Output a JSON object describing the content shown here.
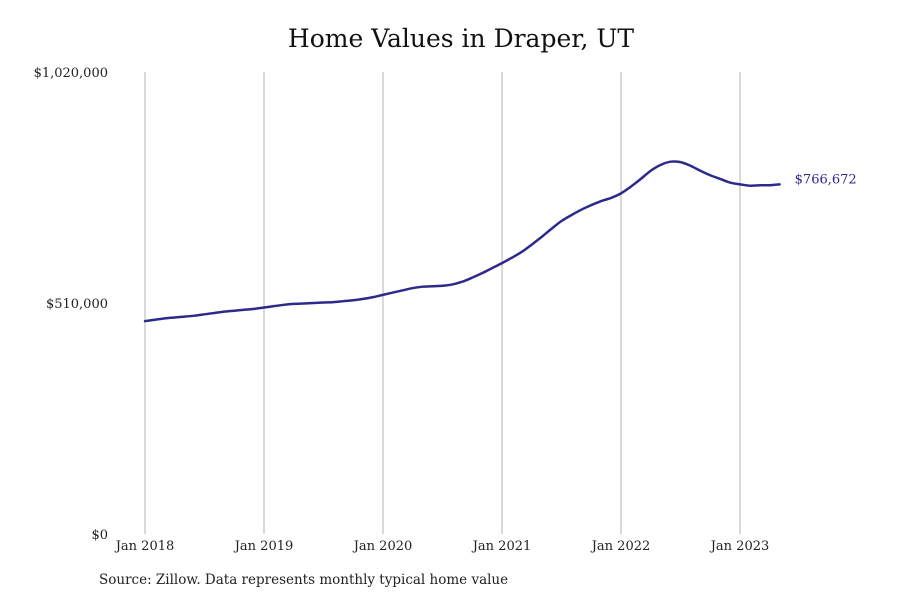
{
  "chart_data": {
    "type": "line",
    "title": "Home Values in Draper, UT",
    "source": "Source: Zillow. Data represents monthly typical home value",
    "x_ticks": [
      "Jan 2018",
      "Jan 2019",
      "Jan 2020",
      "Jan 2021",
      "Jan 2022",
      "Jan 2023"
    ],
    "y_ticks": [
      "$0",
      "$510,000",
      "$1,020,000"
    ],
    "ylim": [
      0,
      1020000
    ],
    "grid": "vertical",
    "line_color": "#2e2a8c",
    "end_label": "$766,672",
    "series": [
      {
        "x": [
          "2018-01",
          "2018-02",
          "2018-03",
          "2018-04",
          "2018-05",
          "2018-06",
          "2018-07",
          "2018-08",
          "2018-09",
          "2018-10",
          "2018-11",
          "2018-12",
          "2019-01",
          "2019-02",
          "2019-03",
          "2019-04",
          "2019-05",
          "2019-06",
          "2019-07",
          "2019-08",
          "2019-09",
          "2019-10",
          "2019-11",
          "2019-12",
          "2020-01",
          "2020-02",
          "2020-03",
          "2020-04",
          "2020-05",
          "2020-06",
          "2020-07",
          "2020-08",
          "2020-09",
          "2020-10",
          "2020-11",
          "2020-12",
          "2021-01",
          "2021-02",
          "2021-03",
          "2021-04",
          "2021-05",
          "2021-06",
          "2021-07",
          "2021-08",
          "2021-09",
          "2021-10",
          "2021-11",
          "2021-12",
          "2022-01",
          "2022-02",
          "2022-03",
          "2022-04",
          "2022-05",
          "2022-06",
          "2022-07",
          "2022-08",
          "2022-09",
          "2022-10",
          "2022-11",
          "2022-12",
          "2023-01",
          "2023-02",
          "2023-03",
          "2023-04",
          "2023-05"
        ],
        "values": [
          470000,
          473000,
          476000,
          478000,
          480000,
          482000,
          485000,
          488000,
          491000,
          493000,
          495000,
          497000,
          500000,
          503000,
          506000,
          508000,
          509000,
          510000,
          511000,
          512000,
          514000,
          516000,
          519000,
          523000,
          528000,
          533000,
          538000,
          543000,
          546000,
          547000,
          548000,
          551000,
          557000,
          566000,
          576000,
          587000,
          598000,
          610000,
          623000,
          639000,
          656000,
          674000,
          691000,
          704000,
          716000,
          726000,
          735000,
          742000,
          752000,
          767000,
          784000,
          802000,
          815000,
          822000,
          821000,
          813000,
          802000,
          792000,
          784000,
          776000,
          772000,
          769000,
          770000,
          770000,
          772000
        ]
      }
    ]
  }
}
